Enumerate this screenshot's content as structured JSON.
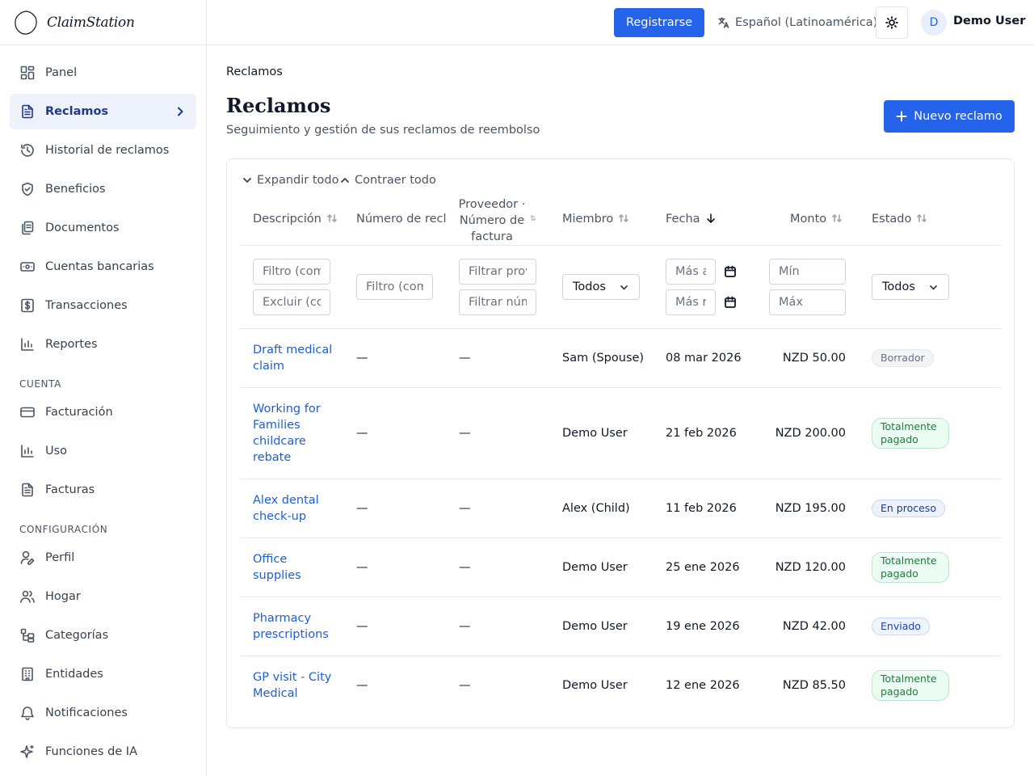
{
  "app": {
    "brand": "ClaimStation"
  },
  "sidebar": {
    "items": [
      {
        "label": "Panel",
        "icon": "layout-grid-icon"
      },
      {
        "label": "Reclamos",
        "icon": "file-text-icon",
        "active": true
      },
      {
        "label": "Historial de reclamos",
        "icon": "history-icon"
      },
      {
        "label": "Beneficios",
        "icon": "shield-icon"
      },
      {
        "label": "Documentos",
        "icon": "documents-icon"
      },
      {
        "label": "Cuentas bancarias",
        "icon": "bank-card-icon"
      },
      {
        "label": "Transacciones",
        "icon": "dollar-icon"
      },
      {
        "label": "Reportes",
        "icon": "bar-chart-icon"
      }
    ],
    "section_account": "CUENTA",
    "account_items": [
      {
        "label": "Facturación",
        "icon": "credit-card-icon"
      },
      {
        "label": "Uso",
        "icon": "bar-chart-icon"
      },
      {
        "label": "Facturas",
        "icon": "file-text-icon"
      }
    ],
    "section_config": "CONFIGURACIÓN",
    "config_items": [
      {
        "label": "Perfil",
        "icon": "user-edit-icon"
      },
      {
        "label": "Hogar",
        "icon": "users-icon"
      },
      {
        "label": "Categorías",
        "icon": "categories-icon"
      },
      {
        "label": "Entidades",
        "icon": "building-icon"
      },
      {
        "label": "Notificaciones",
        "icon": "bell-icon"
      },
      {
        "label": "Funciones de IA",
        "icon": "sparkles-icon"
      }
    ]
  },
  "header": {
    "register_label": "Registrarse",
    "language": "Español (Latinoamérica)",
    "avatar_initial": "D",
    "user_name": "Demo User"
  },
  "page": {
    "breadcrumb": "Reclamos",
    "title": "Reclamos",
    "subtitle": "Seguimiento y gestión de sus reclamos de reembolso",
    "new_claim_label": "Nuevo reclamo",
    "expand_all": "Expandir todo",
    "collapse_all": "Contraer todo"
  },
  "table": {
    "columns": {
      "description": "Descripción",
      "claim_number": "Número de reclamo",
      "provider_line1": "Proveedor ·",
      "provider_line2": "Número de",
      "provider_line3": "factura",
      "member": "Miembro",
      "date": "Fecha",
      "amount": "Monto",
      "status": "Estado"
    },
    "filters": {
      "desc_filter_placeholder": "Filtro (comienza con)",
      "desc_exclude_placeholder": "Excluir (contiene)",
      "claim_filter_placeholder": "Filtro (comienza con)",
      "provider_filter_placeholder": "Filtrar proveedor",
      "invoice_filter_placeholder": "Filtrar número",
      "member_select": "Todos",
      "date_from_placeholder": "Más antiguo",
      "date_to_placeholder": "Más reciente",
      "amount_min_placeholder": "Mín",
      "amount_max_placeholder": "Máx",
      "status_select": "Todos"
    },
    "rows": [
      {
        "desc1": "Draft medical",
        "desc2": "claim",
        "claim_no": "—",
        "provider": "—",
        "member": "Sam (Spouse)",
        "date": "08 mar 2026",
        "amount": "NZD 50.00",
        "status": "Borrador",
        "status_kind": "draft"
      },
      {
        "desc1": "Working for",
        "desc2": "Families",
        "desc3": "childcare",
        "desc4": "rebate",
        "claim_no": "—",
        "provider": "—",
        "member": "Demo User",
        "date": "21 feb 2026",
        "amount": "NZD 200.00",
        "status1": "Totalmente",
        "status2": "pagado",
        "status_kind": "paid"
      },
      {
        "desc1": "Alex dental",
        "desc2": "check-up",
        "claim_no": "—",
        "provider": "—",
        "member": "Alex (Child)",
        "date": "11 feb 2026",
        "amount": "NZD 195.00",
        "status": "En proceso",
        "status_kind": "progress"
      },
      {
        "desc1": "Office",
        "desc2": "supplies",
        "claim_no": "—",
        "provider": "—",
        "member": "Demo User",
        "date": "25 ene 2026",
        "amount": "NZD 120.00",
        "status1": "Totalmente",
        "status2": "pagado",
        "status_kind": "paid"
      },
      {
        "desc1": "Pharmacy",
        "desc2": "prescriptions",
        "claim_no": "—",
        "provider": "—",
        "member": "Demo User",
        "date": "19 ene 2026",
        "amount": "NZD 42.00",
        "status": "Enviado",
        "status_kind": "sent"
      },
      {
        "desc1": "GP visit - City",
        "desc2": "Medical",
        "claim_no": "—",
        "provider": "—",
        "member": "Demo User",
        "date": "12 ene 2026",
        "amount": "NZD 85.50",
        "status1": "Totalmente",
        "status2": "pagado",
        "status_kind": "paid"
      }
    ]
  },
  "colors": {
    "primary": "#2563eb",
    "link": "#1d5fd6",
    "active_nav_bg": "#eef2fb"
  }
}
